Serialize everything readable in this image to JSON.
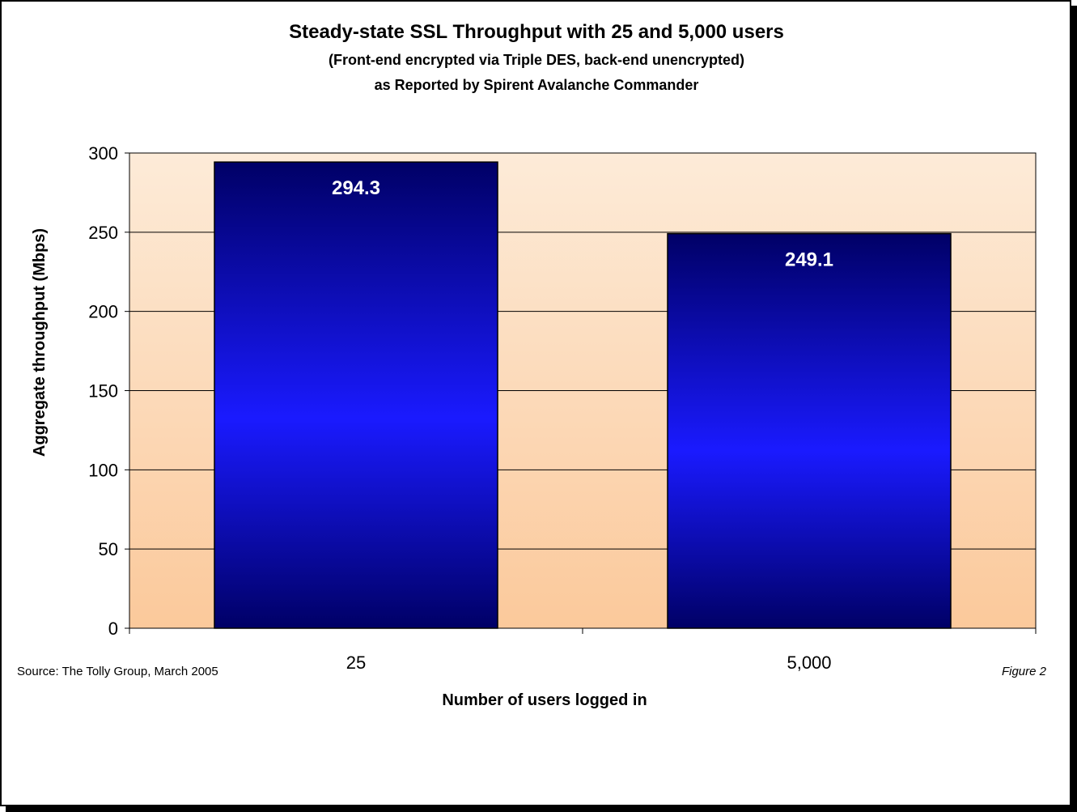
{
  "chart_data": {
    "type": "bar",
    "title": "Steady-state SSL Throughput with 25 and 5,000 users",
    "subtitle_lines": [
      "(Front-end encrypted via Triple DES, back-end unencrypted)",
      "as Reported by Spirent Avalanche Commander"
    ],
    "categories": [
      "25",
      "5,000"
    ],
    "values": [
      294.3,
      249.1
    ],
    "data_labels": [
      "294.3",
      "249.1"
    ],
    "xlabel": "Number of users logged in",
    "ylabel": "Aggregate throughput (Mbps)",
    "ylim": [
      0,
      300
    ],
    "yticks": [
      "0",
      "50",
      "100",
      "150",
      "200",
      "250",
      "300"
    ],
    "grid": true,
    "legend": "none",
    "colors": {
      "bar_top": "#000066",
      "bar_mid": "#1a1aff",
      "bar_bottom": "#000066",
      "plot_bg_top": "#fdebd8",
      "plot_bg_bottom": "#fbc99b"
    }
  },
  "footer": {
    "source": "Source: The Tolly Group, March 2005",
    "figure": "Figure 2"
  }
}
